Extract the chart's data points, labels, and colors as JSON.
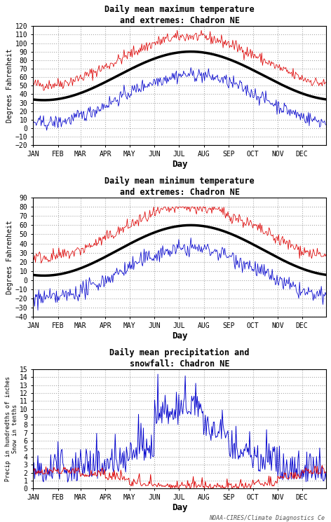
{
  "title1": "Daily mean maximum temperature\nand extremes: Chadron NE",
  "title2": "Daily mean minimum temperature\nand extremes: Chadron NE",
  "title3": "Daily mean precipitation and\nsnowfall: Chadron NE",
  "ylabel1": "Degrees Fahrenheit",
  "ylabel2": "Degrees Fahrenheit",
  "ylabel3": "Precip in hundredths of inches\nSnow in tenths",
  "xlabel": "Day",
  "months": [
    "JAN",
    "FEB",
    "MAR",
    "APR",
    "MAY",
    "JUN",
    "JUL",
    "AUG",
    "SEP",
    "OCT",
    "NOV",
    "DEC"
  ],
  "background": "#ffffff",
  "grid_color": "#aaaaaa",
  "line_red": "#dd0000",
  "line_blue": "#0000cc",
  "line_black": "#000000",
  "plot1_ylim": [
    -20,
    120
  ],
  "plot1_yticks": [
    -20,
    -10,
    0,
    10,
    20,
    30,
    40,
    50,
    60,
    70,
    80,
    90,
    100,
    110,
    120
  ],
  "plot2_ylim": [
    -40,
    90
  ],
  "plot2_yticks": [
    -40,
    -30,
    -20,
    -10,
    0,
    10,
    20,
    30,
    40,
    50,
    60,
    70,
    80,
    90
  ],
  "plot3_ylim": [
    0,
    15
  ],
  "plot3_yticks": [
    0,
    1,
    2,
    3,
    4,
    5,
    6,
    7,
    8,
    9,
    10,
    11,
    12,
    13,
    14,
    15
  ],
  "footer": "NOAA-CIRES/Climate Diagnostics Ce"
}
